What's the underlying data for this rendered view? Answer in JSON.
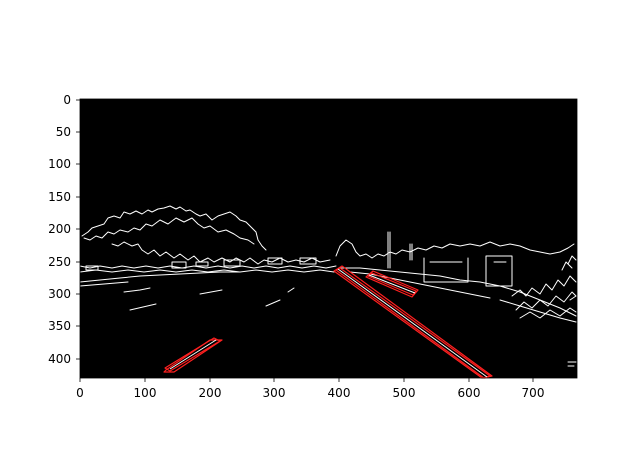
{
  "figure": {
    "x_ticks": [
      "0",
      "100",
      "200",
      "300",
      "400",
      "500",
      "600",
      "700"
    ],
    "y_ticks": [
      "0",
      "50",
      "100",
      "150",
      "200",
      "250",
      "300",
      "350",
      "400"
    ],
    "image_background": "#000000",
    "edge_color": "#ffffff",
    "lane_highlight_color": "#ff0000",
    "x_domain": [
      0,
      768
    ],
    "y_domain": [
      0,
      432
    ]
  }
}
